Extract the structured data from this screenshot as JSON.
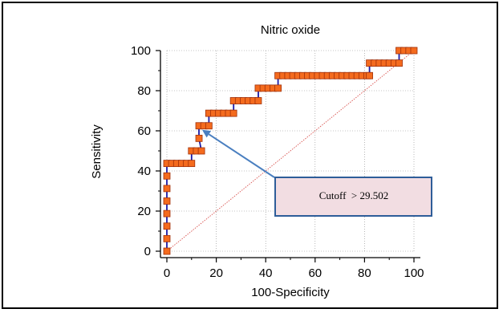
{
  "chart_data": {
    "type": "line",
    "title": "Nitric oxide",
    "xlabel": "100-Specificity",
    "ylabel": "Sensitivity",
    "xlim": [
      0,
      100
    ],
    "ylim": [
      0,
      100
    ],
    "xticks": [
      "0",
      "20",
      "40",
      "60",
      "80",
      "100"
    ],
    "yticks": [
      "0",
      "20",
      "40",
      "60",
      "80",
      "100"
    ],
    "grid": true,
    "diagonal_reference": true,
    "series": [
      {
        "roc_curve": [
          [
            0,
            0
          ],
          [
            0,
            6.25
          ],
          [
            0,
            12.5
          ],
          [
            0,
            18.75
          ],
          [
            0,
            25
          ],
          [
            0,
            31.25
          ],
          [
            0,
            37.5
          ],
          [
            0,
            43.75
          ],
          [
            2,
            43.75
          ],
          [
            4,
            43.75
          ],
          [
            6,
            43.75
          ],
          [
            8,
            43.75
          ],
          [
            10,
            43.75
          ],
          [
            10,
            50
          ],
          [
            12,
            50
          ],
          [
            14,
            50
          ],
          [
            13,
            56.25
          ],
          [
            13,
            62.5
          ],
          [
            15,
            62.5
          ],
          [
            17,
            62.5
          ],
          [
            17,
            68.75
          ],
          [
            19,
            68.75
          ],
          [
            21,
            68.75
          ],
          [
            23,
            68.75
          ],
          [
            25,
            68.75
          ],
          [
            27,
            68.75
          ],
          [
            27,
            75
          ],
          [
            29,
            75
          ],
          [
            31,
            75
          ],
          [
            33,
            75
          ],
          [
            35,
            75
          ],
          [
            37,
            75
          ],
          [
            37,
            81.25
          ],
          [
            39,
            81.25
          ],
          [
            41,
            81.25
          ],
          [
            43,
            81.25
          ],
          [
            45,
            81.25
          ],
          [
            45,
            87.5
          ],
          [
            47,
            87.5
          ],
          [
            49,
            87.5
          ],
          [
            51,
            87.5
          ],
          [
            53,
            87.5
          ],
          [
            55,
            87.5
          ],
          [
            57,
            87.5
          ],
          [
            59,
            87.5
          ],
          [
            61,
            87.5
          ],
          [
            63,
            87.5
          ],
          [
            65,
            87.5
          ],
          [
            67,
            87.5
          ],
          [
            69,
            87.5
          ],
          [
            71,
            87.5
          ],
          [
            73,
            87.5
          ],
          [
            75,
            87.5
          ],
          [
            77,
            87.5
          ],
          [
            79,
            87.5
          ],
          [
            81,
            87.5
          ],
          [
            82,
            87.5
          ],
          [
            82,
            93.75
          ],
          [
            84,
            93.75
          ],
          [
            86,
            93.75
          ],
          [
            88,
            93.75
          ],
          [
            90,
            93.75
          ],
          [
            92,
            93.75
          ],
          [
            94,
            93.75
          ],
          [
            94,
            100
          ],
          [
            96,
            100
          ],
          [
            98,
            100
          ],
          [
            100,
            100
          ]
        ]
      }
    ],
    "annotation": {
      "text": "Cutoff  > 29.502",
      "points_to": [
        13,
        62.5
      ]
    },
    "colors": {
      "curve": "#1a1aa6",
      "marker_fill": "#f46b1e",
      "marker_edge": "#a0300a",
      "diagonal": "#d9534f",
      "arrow": "#4a7fc0",
      "callout_fill": "#f2dde2",
      "callout_border": "#2e5d99"
    }
  }
}
